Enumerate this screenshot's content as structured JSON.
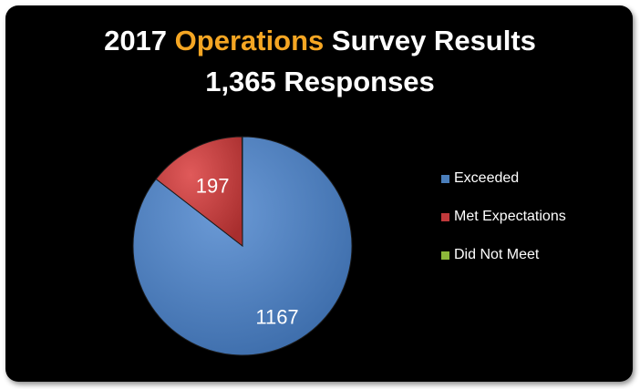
{
  "chart_data": {
    "type": "pie",
    "title_prefix": "2017 ",
    "title_highlight": "Operations",
    "title_suffix": " Survey Results",
    "subtitle": "1,365 Responses",
    "categories": [
      "Exceeded",
      "Met Expectations",
      "Did Not Meet"
    ],
    "values": [
      1167,
      197,
      1
    ],
    "data_labels": [
      "1167",
      "197",
      ""
    ],
    "colors": [
      "#4a7ebb",
      "#c0393b",
      "#8db83a"
    ],
    "highlight_color": "#f5a623",
    "legend_position": "right"
  }
}
